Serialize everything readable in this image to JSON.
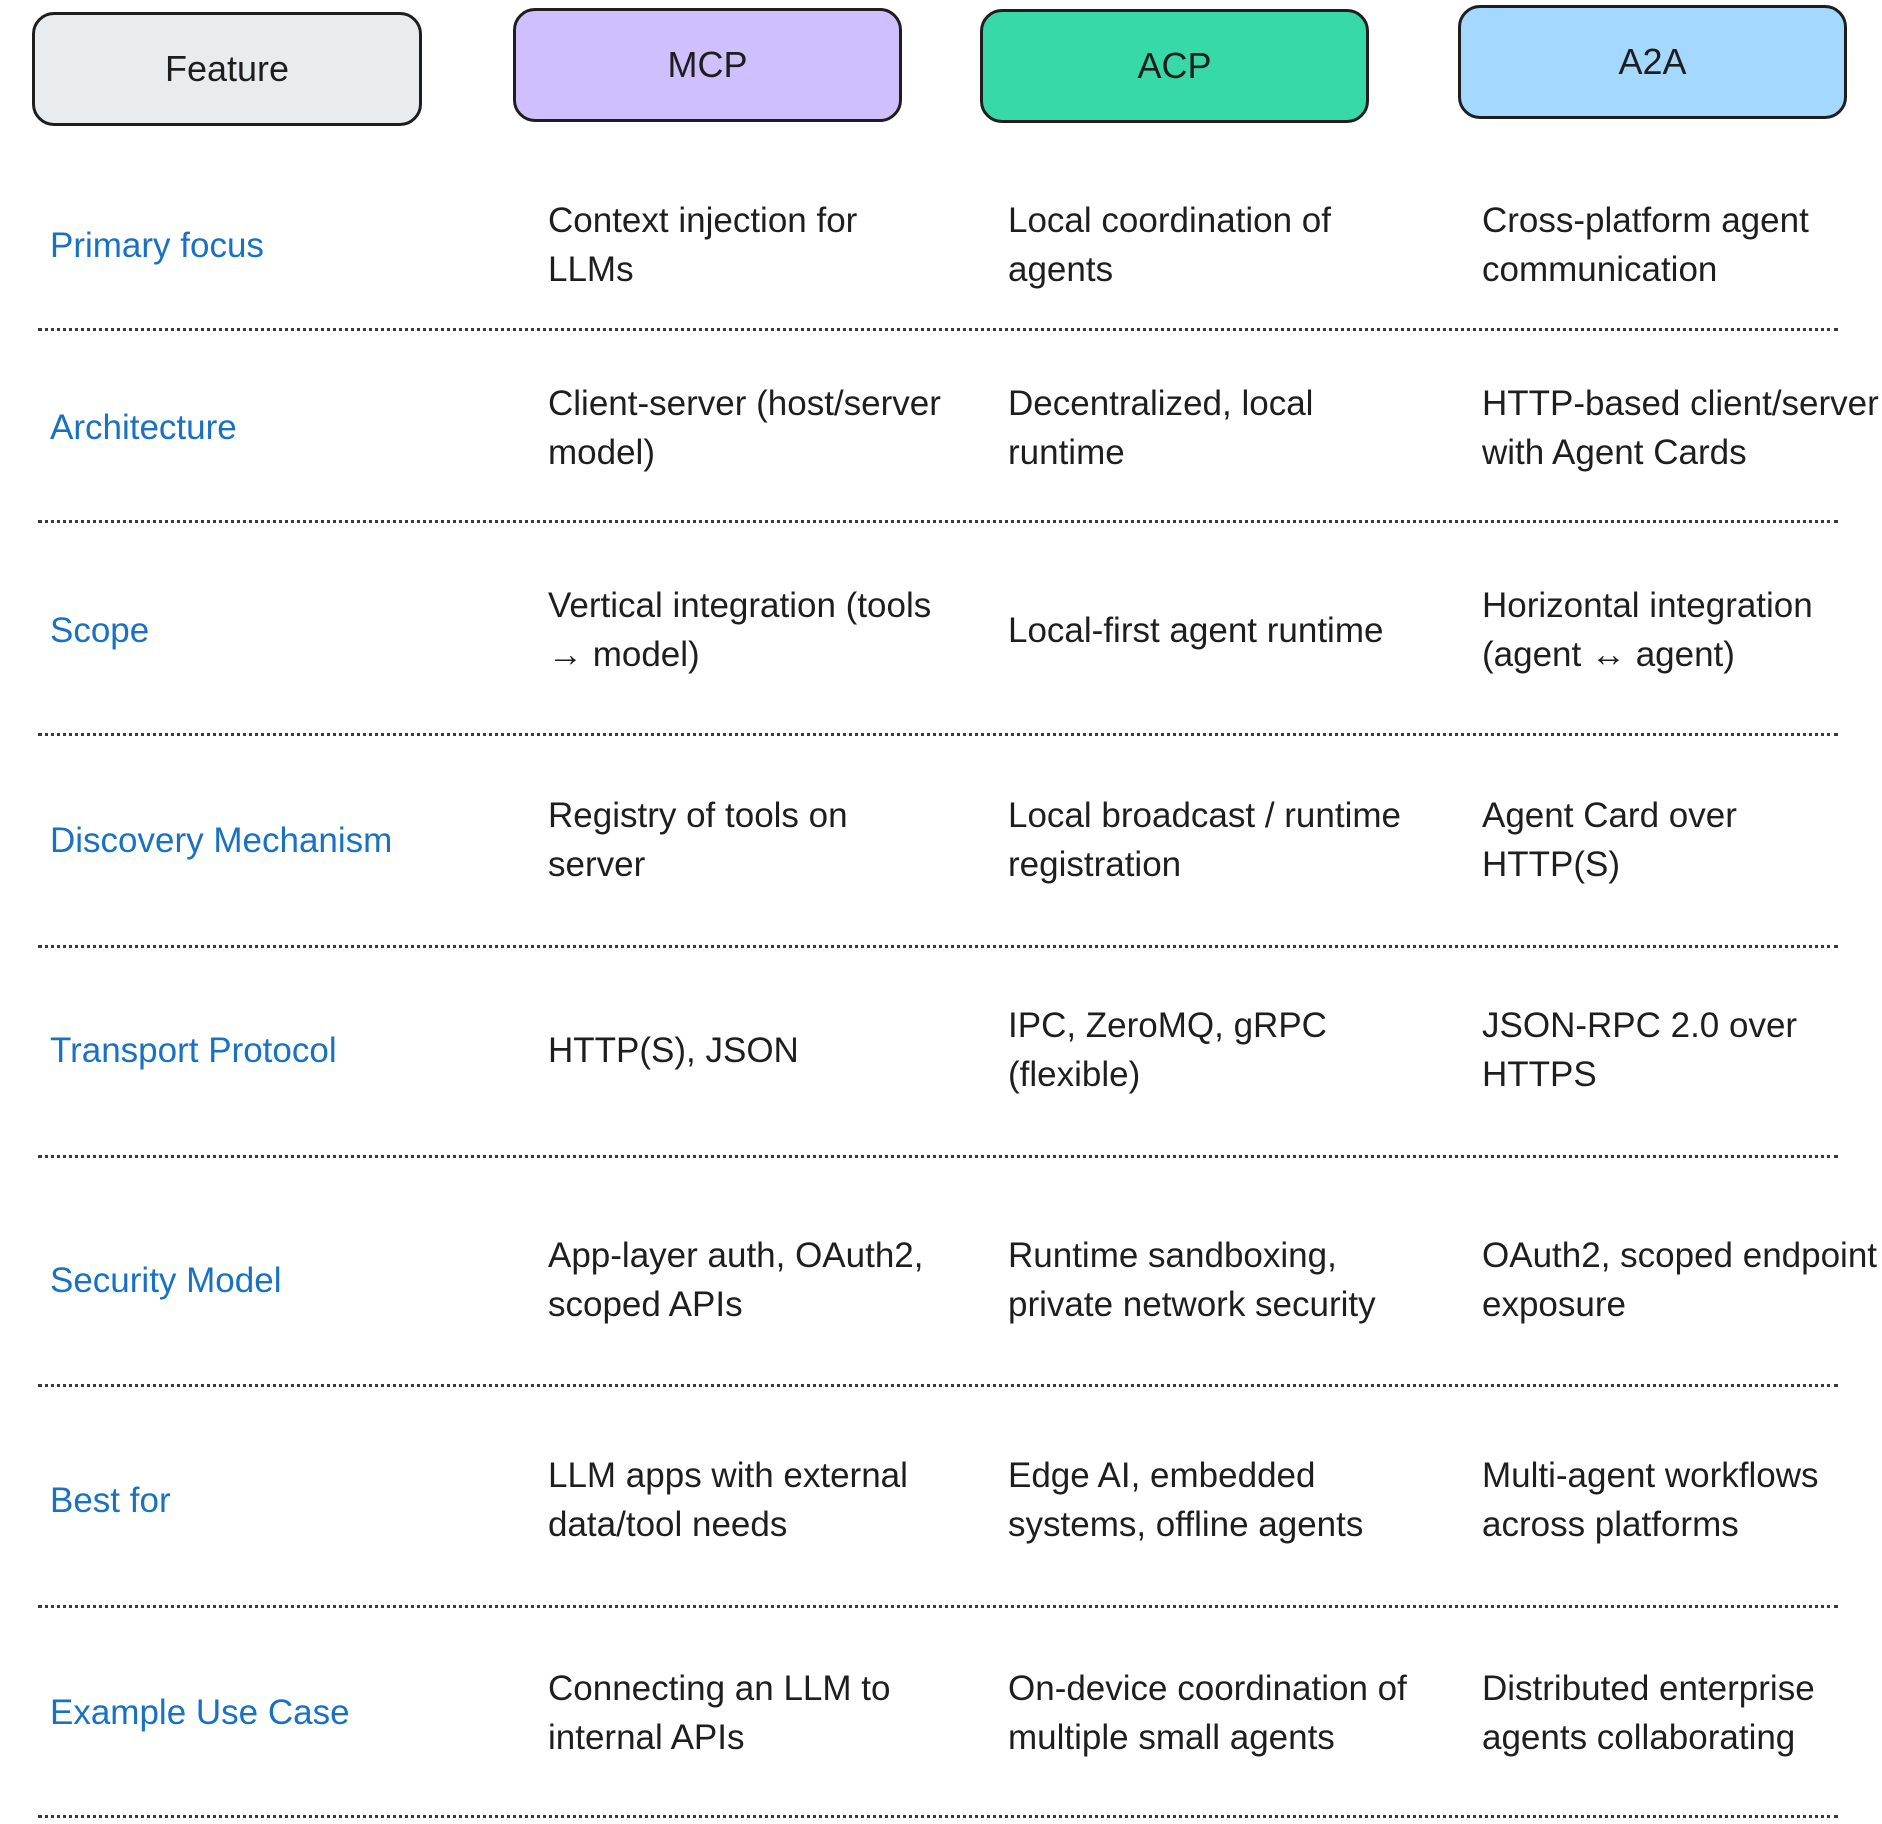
{
  "headers": [
    {
      "label": "Feature",
      "color": "#e9ecef"
    },
    {
      "label": "MCP",
      "color": "#d0bfff"
    },
    {
      "label": "ACP",
      "color": "#38d9a9"
    },
    {
      "label": "A2A",
      "color": "#a5d8ff"
    }
  ],
  "rows": [
    {
      "feature": "Primary focus",
      "mcp": "Context injection for LLMs",
      "acp": "Local coordination of agents",
      "a2a": "Cross-platform agent communication"
    },
    {
      "feature": "Architecture",
      "mcp": "Client-server (host/server model)",
      "acp": "Decentralized, local runtime",
      "a2a": "HTTP-based client/server with Agent Cards"
    },
    {
      "feature": "Scope",
      "mcp": "Vertical integration (tools → model)",
      "acp": "Local-first agent runtime",
      "a2a": "Horizontal integration (agent ↔ agent)"
    },
    {
      "feature": "Discovery Mechanism",
      "mcp": "Registry of tools on server",
      "acp": "Local broadcast / runtime registration",
      "a2a": "Agent Card over HTTP(S)"
    },
    {
      "feature": "Transport Protocol",
      "mcp": "HTTP(S), JSON",
      "acp": "IPC, ZeroMQ, gRPC (flexible)",
      "a2a": "JSON-RPC 2.0 over HTTPS"
    },
    {
      "feature": "Security Model",
      "mcp": "App-layer auth, OAuth2, scoped APIs",
      "acp": "Runtime sandboxing, private network security",
      "a2a": "OAuth2, scoped endpoint exposure"
    },
    {
      "feature": "Best for",
      "mcp": "LLM apps with external data/tool needs",
      "acp": "Edge AI, embedded systems, offline agents",
      "a2a": "Multi-agent workflows across platforms"
    },
    {
      "feature": "Example Use Case",
      "mcp": "Connecting an LLM to internal APIs",
      "acp": "On-device coordination of multiple small agents",
      "a2a": "Distributed enterprise agents collaborating"
    }
  ]
}
